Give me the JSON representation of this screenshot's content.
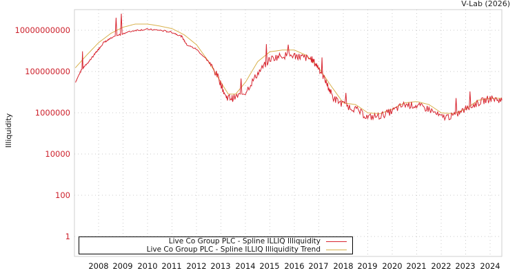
{
  "credit": "V-Lab (2026)",
  "colors": {
    "series": "#d7232e",
    "trend": "#d8b04a",
    "tick_label": "#cc1f2a",
    "grid": "#c8c8c8",
    "frame": "#cfcfcf"
  },
  "legend": {
    "items": [
      {
        "label": "Live Co Group PLC - Spline ILLIQ Illiquidity",
        "color": "#d7232e"
      },
      {
        "label": "Live Co Group PLC - Spline ILLIQ Illiquidity Trend",
        "color": "#d8b04a"
      }
    ]
  },
  "axes": {
    "ylabel": "Illiquidity",
    "yticks": [
      "10000000000",
      "100000000",
      "1000000",
      "10000",
      "100",
      "1"
    ],
    "xticks": [
      "2008",
      "2009",
      "2010",
      "2011",
      "2012",
      "2013",
      "2014",
      "2015",
      "2016",
      "2017",
      "2018",
      "2019",
      "2020",
      "2021",
      "2022",
      "2023",
      "2024"
    ]
  },
  "chart_data": {
    "type": "line",
    "title": "",
    "xlabel": "",
    "ylabel": "Illiquidity",
    "yscale": "log",
    "ylim": [
      0.1,
      1000000000000.0
    ],
    "xlim": [
      2007.05,
      2024.5
    ],
    "grid": true,
    "legend_position": "bottom-left inside",
    "series": [
      {
        "name": "Live Co Group PLC - Spline ILLIQ Illiquidity",
        "x": [
          2007.05,
          2007.3,
          2007.6,
          2007.8,
          2008.0,
          2008.2,
          2008.5,
          2009.0,
          2009.5,
          2010.0,
          2010.5,
          2011.0,
          2011.4,
          2011.6,
          2012.0,
          2012.5,
          2012.9,
          2013.2,
          2013.5,
          2014.0,
          2014.5,
          2015.0,
          2015.5,
          2016.0,
          2016.3,
          2016.7,
          2017.0,
          2017.3,
          2017.6,
          2018.0,
          2018.5,
          2019.0,
          2019.5,
          2020.0,
          2020.5,
          2021.0,
          2021.5,
          2022.0,
          2022.5,
          2023.0,
          2023.5,
          2024.0,
          2024.5
        ],
        "values": [
          30000000.0,
          120000000.0,
          300000000.0,
          600000000.0,
          1200000000.0,
          2500000000.0,
          4000000000.0,
          7000000000.0,
          10000000000.0,
          11000000000.0,
          10000000000.0,
          8000000000.0,
          5000000000.0,
          2000000000.0,
          1200000000.0,
          300000000.0,
          50000000.0,
          6000000.0,
          5000000.0,
          10000000.0,
          80000000.0,
          400000000.0,
          600000000.0,
          600000000.0,
          500000000.0,
          400000000.0,
          150000000.0,
          30000000.0,
          5000000.0,
          2500000.0,
          1500000.0,
          600000.0,
          700000.0,
          1200000.0,
          2500000.0,
          2200000.0,
          1500000.0,
          600000.0,
          700000.0,
          1500000.0,
          3000000.0,
          5000000.0,
          4000000.0
        ]
      },
      {
        "name": "Live Co Group PLC - Spline ILLIQ Illiquidity Trend",
        "x": [
          2007.05,
          2007.5,
          2008.0,
          2008.5,
          2009.0,
          2009.5,
          2010.0,
          2010.5,
          2011.0,
          2011.5,
          2012.0,
          2012.5,
          2013.0,
          2013.3,
          2013.6,
          2014.0,
          2014.5,
          2015.0,
          2015.5,
          2016.0,
          2016.5,
          2017.0,
          2017.5,
          2018.0,
          2018.5,
          2019.0,
          2019.5,
          2020.0,
          2020.5,
          2021.0,
          2021.5,
          2022.0,
          2022.5,
          2023.0,
          2023.5,
          2024.0,
          2024.5
        ],
        "values": [
          150000000.0,
          600000000.0,
          2500000000.0,
          7000000000.0,
          14000000000.0,
          20000000000.0,
          20000000000.0,
          16000000000.0,
          12000000000.0,
          6000000000.0,
          2000000000.0,
          300000000.0,
          30000000.0,
          8000000.0,
          8000000.0,
          30000000.0,
          300000000.0,
          900000000.0,
          1100000000.0,
          1100000000.0,
          600000000.0,
          150000000.0,
          20000000.0,
          3000000.0,
          2500000.0,
          1000000.0,
          900000.0,
          1500000.0,
          3000000.0,
          3500000.0,
          2500000.0,
          1000000.0,
          900000.0,
          1500000.0,
          4000000.0,
          5000000.0,
          5000000.0
        ]
      }
    ]
  }
}
